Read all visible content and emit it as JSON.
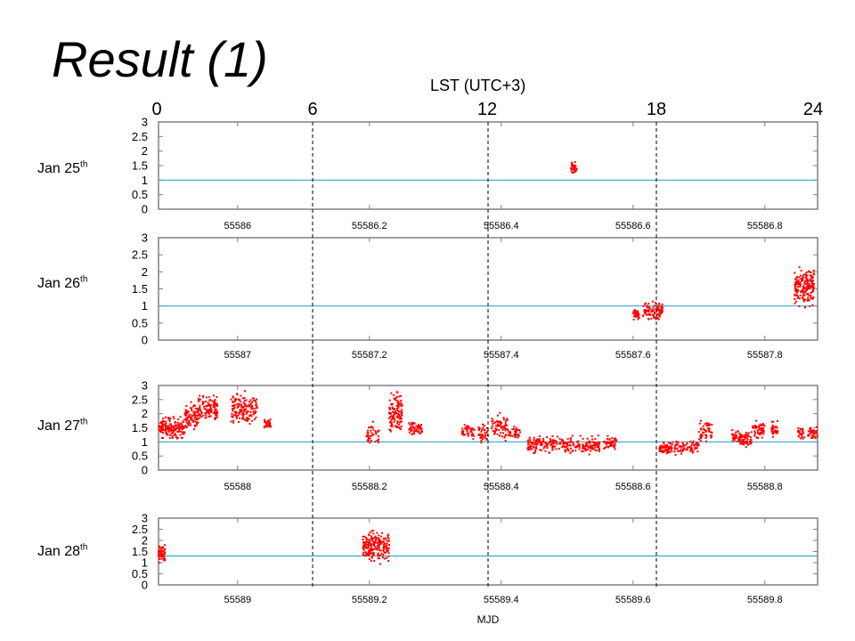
{
  "slide": {
    "title": "Result (1)",
    "lst_axis_title": "LST (UTC+3)",
    "lst_ticks": [
      "0",
      "6",
      "12",
      "18",
      "24"
    ]
  },
  "colors": {
    "points": "#ff0000",
    "reference_line": "#3aa6c6",
    "frame": "#808080",
    "divider": "#000000"
  },
  "chart_data": [
    {
      "type": "scatter",
      "row_label": "Jan 25",
      "row_label_sup": "th",
      "ylim": [
        0,
        3
      ],
      "yticks": [
        "0",
        "0.5",
        "1",
        "1.5",
        "2",
        "2.5",
        "3"
      ],
      "xlim": [
        55585.88,
        55586.88
      ],
      "xticks": [
        "55586",
        "55586.2",
        "55586.4",
        "55586.6",
        "55586.8"
      ],
      "xtick_values": [
        55586,
        55586.2,
        55586.4,
        55586.6,
        55586.8
      ],
      "reference_y": 1.0,
      "xlabel": "",
      "point_clusters": [
        {
          "x": [
            55586.505,
            55586.515
          ],
          "y": [
            1.1,
            1.7
          ],
          "density": 35
        }
      ]
    },
    {
      "type": "scatter",
      "row_label": "Jan 26",
      "row_label_sup": "th",
      "ylim": [
        0,
        3
      ],
      "yticks": [
        "0",
        "0.5",
        "1",
        "1.5",
        "2",
        "2.5",
        "3"
      ],
      "xlim": [
        55586.88,
        55587.88
      ],
      "xticks": [
        "55587",
        "55587.2",
        "55587.4",
        "55587.6",
        "55587.8"
      ],
      "xtick_values": [
        55587,
        55587.2,
        55587.4,
        55587.6,
        55587.8
      ],
      "reference_y": 1.0,
      "xlabel": "",
      "point_clusters": [
        {
          "x": [
            55587.6,
            55587.61
          ],
          "y": [
            0.55,
            0.95
          ],
          "density": 40
        },
        {
          "x": [
            55587.615,
            55587.645
          ],
          "y": [
            0.5,
            1.2
          ],
          "density": 90
        },
        {
          "x": [
            55587.845,
            55587.875
          ],
          "y": [
            0.85,
            2.3
          ],
          "density": 200
        }
      ]
    },
    {
      "type": "scatter",
      "row_label": "Jan 27",
      "row_label_sup": "th",
      "ylim": [
        0,
        3
      ],
      "yticks": [
        "0",
        "0.5",
        "1",
        "1.5",
        "2",
        "2.5",
        "3"
      ],
      "xlim": [
        55587.88,
        55588.88
      ],
      "xticks": [
        "55588",
        "55588.2",
        "55588.4",
        "55588.6",
        "55588.8"
      ],
      "xtick_values": [
        55588,
        55588.2,
        55588.4,
        55588.6,
        55588.8
      ],
      "reference_y": 1.0,
      "xlabel": "",
      "point_clusters": [
        {
          "x": [
            55587.88,
            55587.92
          ],
          "y": [
            1.0,
            2.0
          ],
          "density": 160
        },
        {
          "x": [
            55587.92,
            55587.94
          ],
          "y": [
            1.2,
            2.5
          ],
          "density": 80
        },
        {
          "x": [
            55587.94,
            55587.97
          ],
          "y": [
            1.5,
            2.8
          ],
          "density": 120
        },
        {
          "x": [
            55587.99,
            55588.03
          ],
          "y": [
            1.4,
            2.9
          ],
          "density": 150
        },
        {
          "x": [
            55588.04,
            55588.05
          ],
          "y": [
            1.3,
            2.0
          ],
          "density": 30
        },
        {
          "x": [
            55588.195,
            55588.215
          ],
          "y": [
            0.7,
            1.8
          ],
          "density": 40
        },
        {
          "x": [
            55588.23,
            55588.25
          ],
          "y": [
            1.1,
            3.0
          ],
          "density": 120
        },
        {
          "x": [
            55588.26,
            55588.28
          ],
          "y": [
            1.1,
            1.9
          ],
          "density": 60
        },
        {
          "x": [
            55588.34,
            55588.36
          ],
          "y": [
            1.0,
            1.7
          ],
          "density": 40
        },
        {
          "x": [
            55588.365,
            55588.38
          ],
          "y": [
            0.8,
            1.8
          ],
          "density": 40
        },
        {
          "x": [
            55588.385,
            55588.41
          ],
          "y": [
            0.9,
            2.2
          ],
          "density": 70
        },
        {
          "x": [
            55588.41,
            55588.43
          ],
          "y": [
            1.0,
            1.6
          ],
          "density": 40
        },
        {
          "x": [
            55588.44,
            55588.55
          ],
          "y": [
            0.5,
            1.3
          ],
          "density": 260
        },
        {
          "x": [
            55588.555,
            55588.575
          ],
          "y": [
            0.6,
            1.3
          ],
          "density": 50
        },
        {
          "x": [
            55588.64,
            55588.68
          ],
          "y": [
            0.5,
            1.1
          ],
          "density": 90
        },
        {
          "x": [
            55588.68,
            55588.7
          ],
          "y": [
            0.5,
            1.2
          ],
          "density": 40
        },
        {
          "x": [
            55588.7,
            55588.72
          ],
          "y": [
            0.9,
            1.9
          ],
          "density": 50
        },
        {
          "x": [
            55588.75,
            55588.78
          ],
          "y": [
            0.7,
            1.5
          ],
          "density": 90
        },
        {
          "x": [
            55588.78,
            55588.8
          ],
          "y": [
            1.0,
            1.8
          ],
          "density": 50
        },
        {
          "x": [
            55588.81,
            55588.82
          ],
          "y": [
            1.1,
            1.8
          ],
          "density": 30
        },
        {
          "x": [
            55588.85,
            55588.86
          ],
          "y": [
            1.0,
            1.6
          ],
          "density": 25
        },
        {
          "x": [
            55588.865,
            55588.88
          ],
          "y": [
            0.9,
            1.7
          ],
          "density": 40
        }
      ]
    },
    {
      "type": "scatter",
      "row_label": "Jan 28",
      "row_label_sup": "th",
      "ylim": [
        0,
        3
      ],
      "yticks": [
        "0",
        "0.5",
        "1",
        "1.5",
        "2",
        "2.5",
        "3"
      ],
      "xlim": [
        55588.88,
        55589.88
      ],
      "xticks": [
        "55589",
        "55589.2",
        "55589.4",
        "55589.6",
        "55589.8"
      ],
      "xtick_values": [
        55589,
        55589.2,
        55589.4,
        55589.6,
        55589.8
      ],
      "reference_y": 1.3,
      "xlabel": "MJD",
      "point_clusters": [
        {
          "x": [
            55588.88,
            55588.89
          ],
          "y": [
            0.9,
            1.9
          ],
          "density": 60
        },
        {
          "x": [
            55589.19,
            55589.23
          ],
          "y": [
            0.8,
            2.7
          ],
          "density": 200
        }
      ]
    }
  ]
}
